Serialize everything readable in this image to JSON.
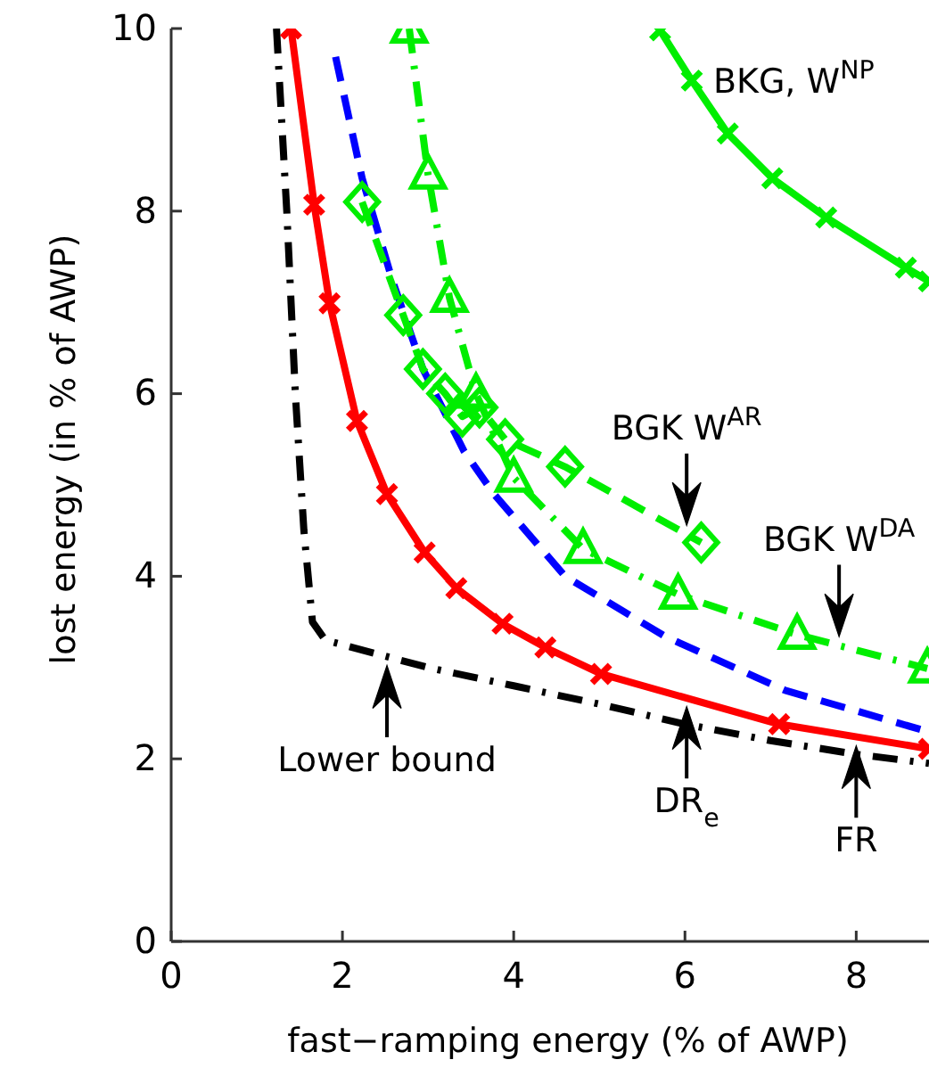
{
  "chart_data": {
    "type": "line",
    "xlabel": "fast−ramping energy (% of AWP)",
    "ylabel": "lost energy (in % of AWP)",
    "xlim": [
      0,
      8.85
    ],
    "ylim": [
      0,
      10
    ],
    "xticks": [
      0,
      2,
      4,
      6,
      8
    ],
    "yticks": [
      0,
      2,
      4,
      6,
      8,
      10
    ],
    "grid": false,
    "series": [
      {
        "color": "#000000",
        "line_style": "dashdot",
        "marker": "none",
        "x": [
          1.23,
          1.35,
          1.45,
          1.55,
          1.65,
          1.8,
          3,
          4,
          5,
          6,
          7,
          8,
          8.85
        ],
        "values": [
          10,
          8,
          6,
          4.5,
          3.5,
          3.3,
          3.0,
          2.8,
          2.6,
          2.38,
          2.2,
          2.05,
          1.95
        ]
      },
      {
        "color": "#ff0000",
        "line_style": "solid",
        "marker": "cross",
        "x": [
          1.4,
          1.67,
          1.85,
          2.17,
          2.52,
          2.96,
          3.33,
          3.87,
          4.37,
          5.02,
          7.1,
          8.85
        ],
        "values": [
          10,
          8.07,
          6.99,
          5.7,
          4.9,
          4.26,
          3.87,
          3.48,
          3.22,
          2.93,
          2.38,
          2.11
        ]
      },
      {
        "color": "#0000ff",
        "line_style": "dashed",
        "marker": "none",
        "x": [
          1.92,
          2.23,
          2.58,
          2.94,
          3.42,
          3.77,
          4.6,
          5.77,
          7.17,
          8.83
        ],
        "values": [
          9.69,
          8.36,
          7.25,
          6.27,
          5.37,
          4.9,
          4.0,
          3.34,
          2.75,
          2.3
        ]
      },
      {
        "color": "#00ee00",
        "line_style": "dashed",
        "marker": "diamond",
        "x": [
          2.23,
          2.71,
          2.94,
          3.2,
          3.4,
          3.6,
          3.9,
          4.6,
          6.19
        ],
        "values": [
          8.1,
          6.86,
          6.27,
          6.0,
          5.75,
          5.85,
          5.5,
          5.2,
          4.37
        ]
      },
      {
        "color": "#00ee00",
        "line_style": "dashdot",
        "marker": "triangle",
        "x": [
          2.78,
          3.0,
          3.25,
          3.56,
          4.0,
          4.81,
          5.92,
          7.31,
          8.83
        ],
        "values": [
          10,
          8.4,
          7.05,
          6.0,
          5.08,
          4.3,
          3.8,
          3.36,
          2.99
        ]
      },
      {
        "name": "BKG, W$^{NP}$",
        "color": "#00ee00",
        "line_style": "solid",
        "marker": "cross",
        "x": [
          5.71,
          6.08,
          6.5,
          7.02,
          7.65,
          8.58,
          8.85
        ],
        "values": [
          9.98,
          9.43,
          8.85,
          8.36,
          7.93,
          7.38,
          7.23
        ]
      }
    ],
    "annotations": [
      {
        "text": "Lower bound",
        "x": 2.52,
        "y": 3.12
      },
      {
        "text": "DR$_{e}$",
        "x": 6.02,
        "y": 2.67
      },
      {
        "text": "FR",
        "x": 8.0,
        "y": 2.24
      },
      {
        "text": "BGK W$^{AR}$",
        "x": 6.02,
        "y": 4.46
      },
      {
        "text": "BGK W$^{DA}$",
        "x": 7.8,
        "y": 3.24
      }
    ]
  }
}
